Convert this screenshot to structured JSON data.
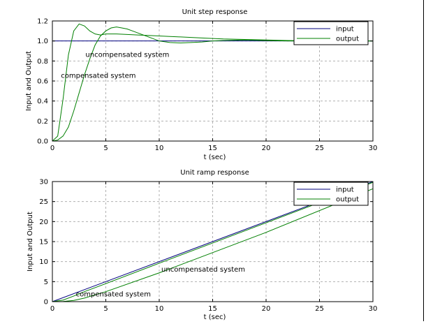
{
  "chart_data": [
    {
      "type": "line",
      "title": "Unit step response",
      "xlabel": "t (sec)",
      "ylabel": "Input and Output",
      "xlim": [
        0,
        30
      ],
      "ylim": [
        0,
        1.2
      ],
      "xticks": [
        "0",
        "5",
        "10",
        "15",
        "20",
        "25",
        "30"
      ],
      "yticks": [
        "0.0",
        "0.2",
        "0.4",
        "0.6",
        "0.8",
        "1.0",
        "1.2"
      ],
      "grid": true,
      "legend_position": "top-right",
      "legend": [
        "input",
        "output"
      ],
      "annotations": [
        {
          "text": "uncompensated system",
          "x": 3.1,
          "y": 0.84
        },
        {
          "text": "compensated system",
          "x": 0.8,
          "y": 0.63
        }
      ],
      "series": [
        {
          "name": "input",
          "color": "#00007f",
          "x": [
            0,
            30
          ],
          "y": [
            1,
            1
          ]
        },
        {
          "name": "output",
          "color": "#007f00",
          "x": [
            0,
            0.5,
            1,
            1.5,
            2,
            2.5,
            3,
            3.5,
            4,
            4.5,
            5,
            6,
            7,
            8,
            9,
            10,
            11,
            12,
            13,
            14,
            15,
            16,
            18,
            20,
            22,
            25,
            28,
            30
          ],
          "y": [
            0,
            0.05,
            0.42,
            0.86,
            1.1,
            1.17,
            1.15,
            1.1,
            1.07,
            1.06,
            1.07,
            1.07,
            1.065,
            1.06,
            1.055,
            1.05,
            1.045,
            1.04,
            1.035,
            1.03,
            1.025,
            1.02,
            1.015,
            1.01,
            1.005,
            1.0,
            1.0,
            1.0
          ]
        },
        {
          "name": "output",
          "color": "#007f00",
          "x": [
            0,
            0.5,
            1,
            1.5,
            2,
            2.5,
            3,
            3.5,
            4,
            4.5,
            5,
            5.5,
            6,
            6.5,
            7,
            7.5,
            8,
            9,
            10,
            11,
            12,
            13,
            14,
            15,
            16,
            18,
            20,
            22,
            25,
            28,
            30
          ],
          "y": [
            0,
            0.01,
            0.05,
            0.14,
            0.3,
            0.48,
            0.66,
            0.82,
            0.96,
            1.05,
            1.1,
            1.13,
            1.14,
            1.13,
            1.12,
            1.1,
            1.08,
            1.04,
            1.0,
            0.985,
            0.98,
            0.985,
            0.99,
            1.0,
            1.005,
            1.01,
            1.005,
            1.0,
            1.0,
            1.0,
            1.0
          ]
        }
      ]
    },
    {
      "type": "line",
      "title": "Unit ramp response",
      "xlabel": "t (sec)",
      "ylabel": "Input and Output",
      "xlim": [
        0,
        30
      ],
      "ylim": [
        0,
        30
      ],
      "xticks": [
        "0",
        "5",
        "10",
        "15",
        "20",
        "25",
        "30"
      ],
      "yticks": [
        "0",
        "5",
        "10",
        "15",
        "20",
        "25",
        "30"
      ],
      "grid": true,
      "legend_position": "top-right",
      "legend": [
        "input",
        "output"
      ],
      "annotations": [
        {
          "text": "uncompensated system",
          "x": 10.2,
          "y": 7.5
        },
        {
          "text": "compensated system",
          "x": 2.2,
          "y": 1.3
        }
      ],
      "series": [
        {
          "name": "input",
          "color": "#00007f",
          "x": [
            0,
            30
          ],
          "y": [
            0,
            30
          ]
        },
        {
          "name": "output",
          "color": "#007f00",
          "x": [
            0,
            1,
            2,
            3,
            4,
            5,
            10,
            20,
            30
          ],
          "y": [
            0,
            0.4,
            1.4,
            2.5,
            3.5,
            4.5,
            9.6,
            19.7,
            29.8
          ]
        },
        {
          "name": "output",
          "color": "#007f00",
          "x": [
            0,
            1,
            2,
            3,
            4,
            5,
            10,
            20,
            30
          ],
          "y": [
            0,
            0.05,
            0.3,
            0.9,
            1.7,
            2.5,
            7.2,
            17.3,
            28.2
          ]
        }
      ]
    }
  ]
}
